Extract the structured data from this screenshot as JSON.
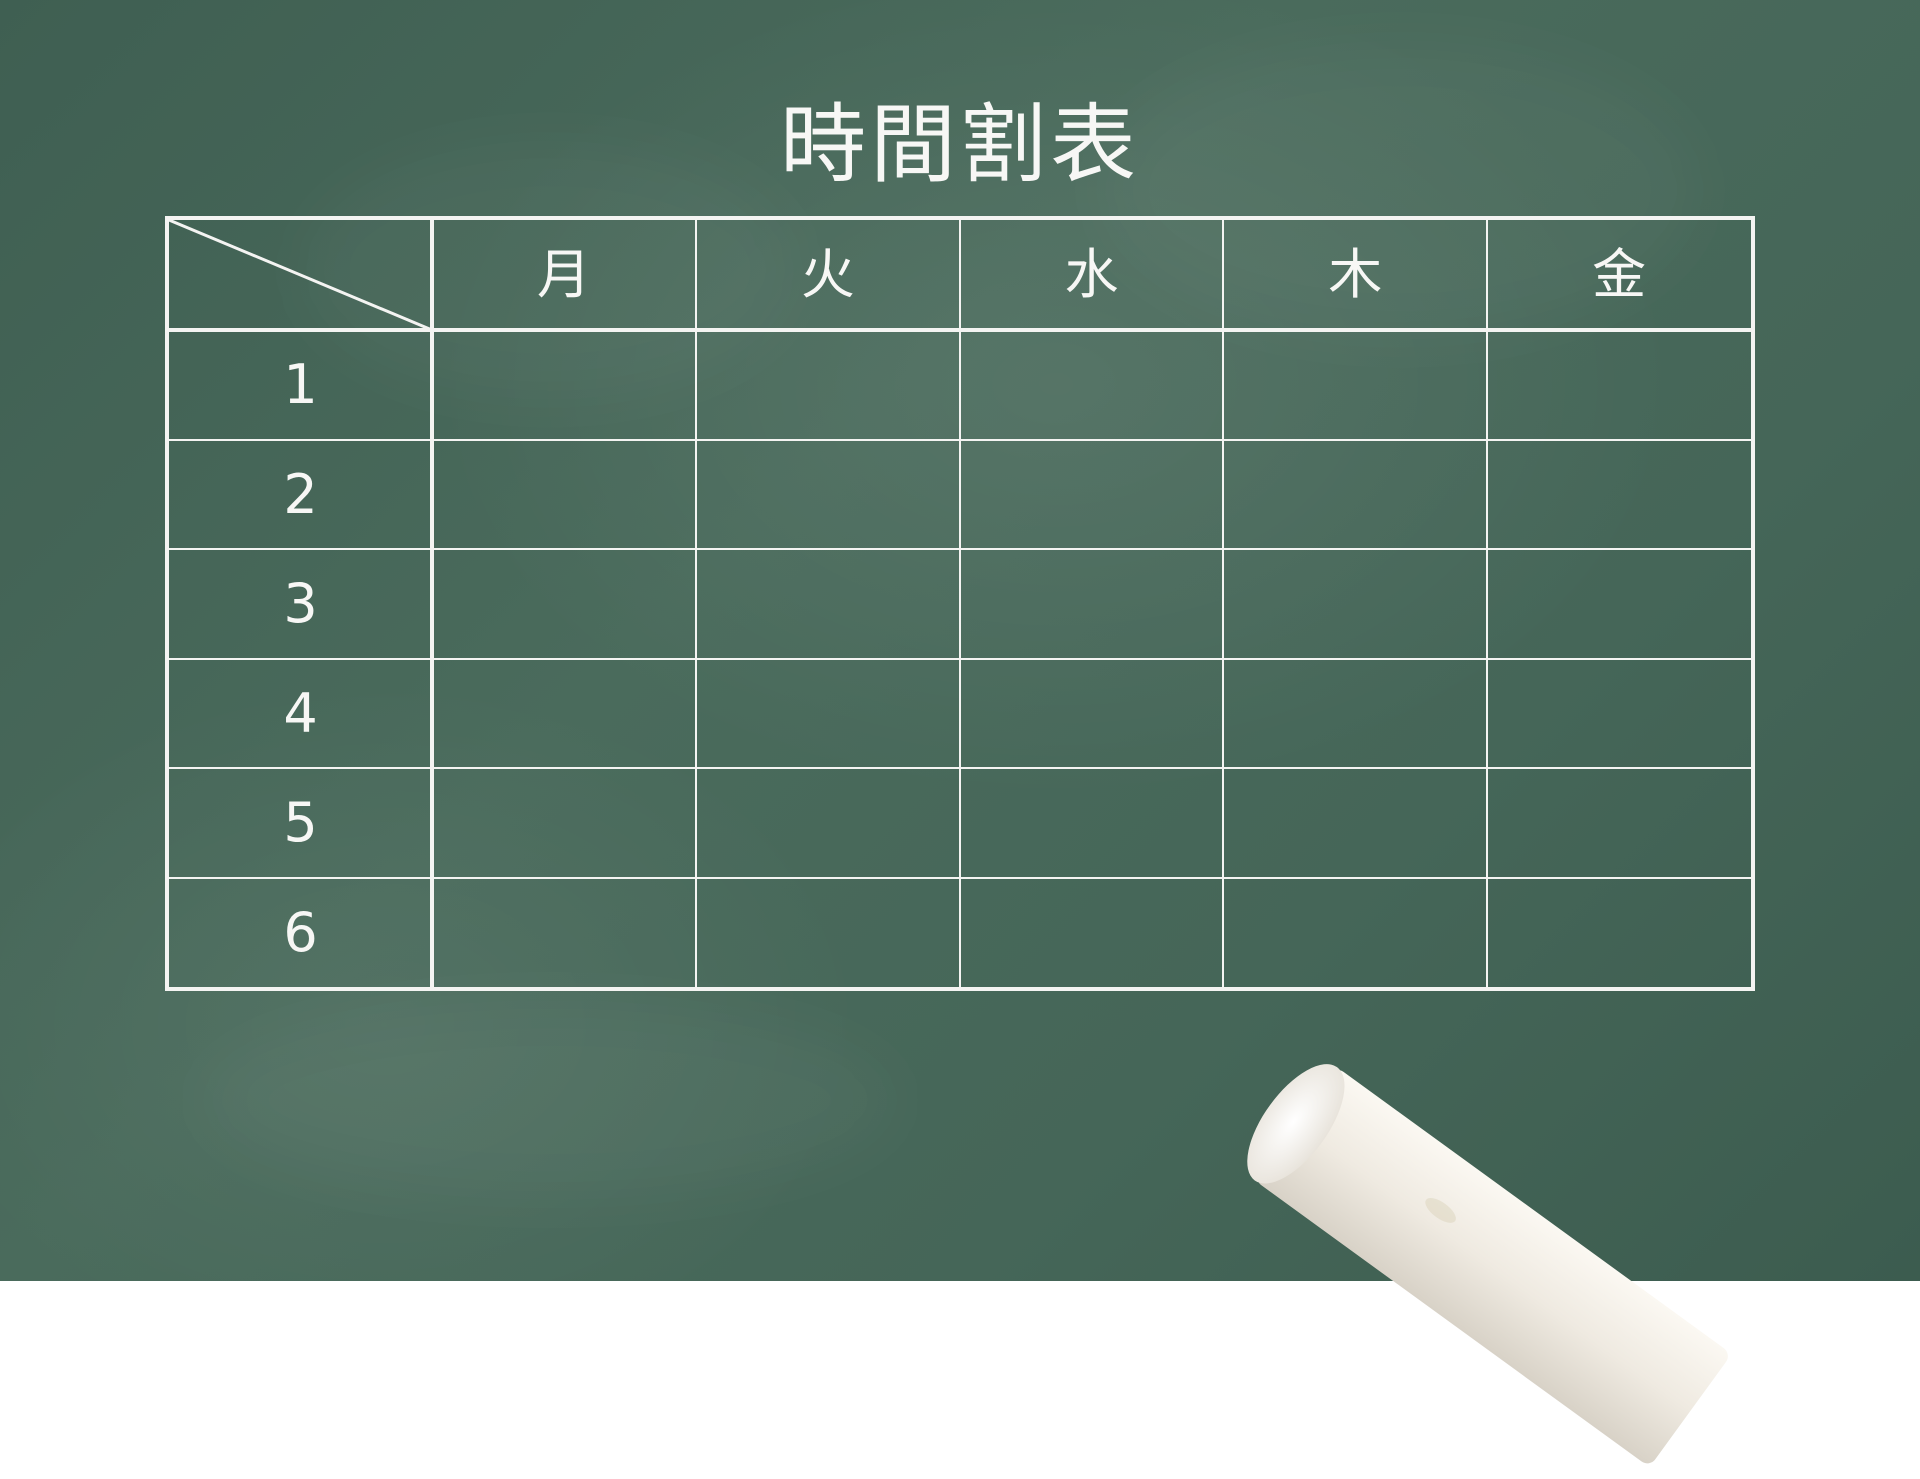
{
  "title": "時間割表",
  "timetable": {
    "corner": "",
    "days": [
      "月",
      "火",
      "水",
      "木",
      "金"
    ],
    "periods": [
      "1",
      "2",
      "3",
      "4",
      "5",
      "6"
    ]
  },
  "colors": {
    "chalkboard": "#4a6b5c",
    "chalk_line": "#f4f4f2",
    "chalk_stick": "#f1ede6"
  },
  "icons": {
    "chalk": "chalk-stick-icon"
  }
}
